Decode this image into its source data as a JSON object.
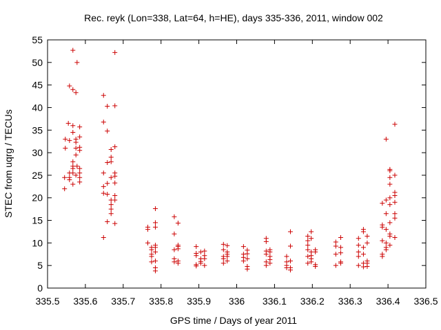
{
  "chart_data": {
    "type": "scatter",
    "title": "Rec. reyk (Lon=338, Lat=64, h=HE), days 335-336, 2011, window 002",
    "xlabel": "GPS time / Days of year 2011",
    "ylabel": "STEC from uqrg / TECUs",
    "xlim": [
      335.5,
      336.5
    ],
    "ylim": [
      0,
      55
    ],
    "xticks": [
      335.5,
      335.6,
      335.7,
      335.8,
      335.9,
      336.0,
      336.1,
      336.2,
      336.3,
      336.4,
      336.5
    ],
    "xtick_labels": [
      "335.5",
      "335.6",
      "335.7",
      "335.8",
      "335.9",
      "336",
      "336.1",
      "336.2",
      "336.3",
      "336.4",
      "336.5"
    ],
    "yticks": [
      0,
      5,
      10,
      15,
      20,
      25,
      30,
      35,
      40,
      45,
      50,
      55
    ],
    "ytick_labels": [
      "0",
      "5",
      "10",
      "15",
      "20",
      "25",
      "30",
      "35",
      "40",
      "45",
      "50",
      "55"
    ],
    "grid": false,
    "marker": "+",
    "color": "#cc0000",
    "points": [
      [
        335.545,
        24.5
      ],
      [
        335.545,
        22.0
      ],
      [
        335.547,
        31.0
      ],
      [
        335.547,
        33.0
      ],
      [
        335.555,
        36.5
      ],
      [
        335.558,
        44.8
      ],
      [
        335.558,
        32.7
      ],
      [
        335.558,
        24.5
      ],
      [
        335.558,
        24.0
      ],
      [
        335.558,
        25.5
      ],
      [
        335.567,
        52.7
      ],
      [
        335.567,
        44.0
      ],
      [
        335.567,
        36.0
      ],
      [
        335.567,
        34.5
      ],
      [
        335.567,
        28.0
      ],
      [
        335.567,
        27.0
      ],
      [
        335.567,
        25.5
      ],
      [
        335.567,
        23.0
      ],
      [
        335.567,
        26.5
      ],
      [
        335.575,
        43.3
      ],
      [
        335.575,
        32.3
      ],
      [
        335.575,
        33.0
      ],
      [
        335.575,
        31.0
      ],
      [
        335.575,
        29.5
      ],
      [
        335.575,
        25.0
      ],
      [
        335.578,
        50.0
      ],
      [
        335.578,
        27.0
      ],
      [
        335.585,
        35.7
      ],
      [
        335.585,
        31.2
      ],
      [
        335.585,
        30.5
      ],
      [
        335.585,
        33.5
      ],
      [
        335.585,
        26.5
      ],
      [
        335.585,
        24.5
      ],
      [
        335.585,
        23.5
      ],
      [
        335.585,
        25.5
      ],
      [
        335.648,
        42.7
      ],
      [
        335.648,
        36.8
      ],
      [
        335.648,
        25.5
      ],
      [
        335.648,
        22.5
      ],
      [
        335.648,
        21.0
      ],
      [
        335.648,
        11.2
      ],
      [
        335.658,
        40.3
      ],
      [
        335.658,
        34.8
      ],
      [
        335.658,
        27.8
      ],
      [
        335.658,
        23.2
      ],
      [
        335.658,
        20.8
      ],
      [
        335.658,
        14.7
      ],
      [
        335.668,
        30.7
      ],
      [
        335.668,
        29.0
      ],
      [
        335.668,
        28.0
      ],
      [
        335.668,
        24.5
      ],
      [
        335.668,
        19.5
      ],
      [
        335.668,
        18.5
      ],
      [
        335.668,
        17.5
      ],
      [
        335.668,
        16.5
      ],
      [
        335.678,
        52.2
      ],
      [
        335.678,
        40.4
      ],
      [
        335.678,
        31.3
      ],
      [
        335.678,
        25.5
      ],
      [
        335.678,
        24.8
      ],
      [
        335.678,
        23.3
      ],
      [
        335.678,
        20.5
      ],
      [
        335.678,
        19.5
      ],
      [
        335.678,
        14.3
      ],
      [
        335.765,
        13.5
      ],
      [
        335.765,
        13.0
      ],
      [
        335.765,
        10.0
      ],
      [
        335.775,
        9.0
      ],
      [
        335.775,
        8.5
      ],
      [
        335.775,
        7.5
      ],
      [
        335.775,
        7.0
      ],
      [
        335.775,
        5.8
      ],
      [
        335.785,
        17.6
      ],
      [
        335.785,
        14.5
      ],
      [
        335.785,
        13.5
      ],
      [
        335.785,
        9.5
      ],
      [
        335.785,
        9.0
      ],
      [
        335.785,
        8.0
      ],
      [
        335.785,
        6.0
      ],
      [
        335.785,
        4.5
      ],
      [
        335.785,
        3.8
      ],
      [
        335.835,
        15.8
      ],
      [
        335.835,
        12.0
      ],
      [
        335.835,
        8.5
      ],
      [
        335.835,
        6.5
      ],
      [
        335.835,
        5.8
      ],
      [
        335.845,
        14.4
      ],
      [
        335.845,
        9.5
      ],
      [
        335.845,
        9.2
      ],
      [
        335.845,
        8.7
      ],
      [
        335.845,
        6.0
      ],
      [
        335.845,
        5.5
      ],
      [
        335.893,
        9.2
      ],
      [
        335.893,
        7.7
      ],
      [
        335.893,
        7.2
      ],
      [
        335.893,
        5.2
      ],
      [
        335.893,
        4.9
      ],
      [
        335.905,
        8.0
      ],
      [
        335.905,
        6.5
      ],
      [
        335.905,
        5.9
      ],
      [
        335.905,
        5.5
      ],
      [
        335.915,
        8.2
      ],
      [
        335.915,
        7.2
      ],
      [
        335.915,
        6.5
      ],
      [
        335.915,
        5.0
      ],
      [
        335.965,
        9.7
      ],
      [
        335.965,
        8.5
      ],
      [
        335.965,
        7.0
      ],
      [
        335.965,
        6.5
      ],
      [
        335.965,
        5.5
      ],
      [
        335.975,
        9.4
      ],
      [
        335.975,
        8.0
      ],
      [
        335.975,
        7.5
      ],
      [
        335.975,
        7.0
      ],
      [
        335.975,
        6.0
      ],
      [
        336.018,
        9.2
      ],
      [
        336.018,
        7.5
      ],
      [
        336.018,
        6.8
      ],
      [
        336.018,
        6.0
      ],
      [
        336.028,
        8.4
      ],
      [
        336.028,
        7.6
      ],
      [
        336.028,
        6.5
      ],
      [
        336.028,
        4.8
      ],
      [
        336.028,
        4.2
      ],
      [
        336.078,
        11.0
      ],
      [
        336.078,
        10.3
      ],
      [
        336.078,
        8.2
      ],
      [
        336.078,
        7.5
      ],
      [
        336.078,
        5.8
      ],
      [
        336.078,
        5.0
      ],
      [
        336.088,
        8.5
      ],
      [
        336.088,
        8.0
      ],
      [
        336.088,
        7.0
      ],
      [
        336.088,
        6.3
      ],
      [
        336.088,
        5.5
      ],
      [
        336.132,
        7.0
      ],
      [
        336.132,
        5.8
      ],
      [
        336.132,
        5.0
      ],
      [
        336.132,
        4.5
      ],
      [
        336.142,
        12.5
      ],
      [
        336.142,
        9.3
      ],
      [
        336.142,
        6.0
      ],
      [
        336.142,
        4.5
      ],
      [
        336.142,
        4.0
      ],
      [
        336.188,
        11.5
      ],
      [
        336.188,
        10.5
      ],
      [
        336.188,
        9.5
      ],
      [
        336.188,
        8.5
      ],
      [
        336.188,
        7.0
      ],
      [
        336.188,
        5.5
      ],
      [
        336.197,
        12.5
      ],
      [
        336.197,
        11.0
      ],
      [
        336.197,
        8.0
      ],
      [
        336.197,
        7.2
      ],
      [
        336.197,
        6.5
      ],
      [
        336.197,
        5.8
      ],
      [
        336.208,
        8.5
      ],
      [
        336.208,
        8.0
      ],
      [
        336.208,
        5.2
      ],
      [
        336.208,
        4.8
      ],
      [
        336.262,
        10.2
      ],
      [
        336.262,
        9.3
      ],
      [
        336.262,
        7.5
      ],
      [
        336.262,
        5.0
      ],
      [
        336.275,
        11.2
      ],
      [
        336.275,
        9.0
      ],
      [
        336.275,
        7.8
      ],
      [
        336.275,
        5.8
      ],
      [
        336.275,
        5.5
      ],
      [
        336.322,
        11.0
      ],
      [
        336.322,
        9.5
      ],
      [
        336.322,
        8.0
      ],
      [
        336.322,
        7.0
      ],
      [
        336.322,
        5.0
      ],
      [
        336.335,
        13.0
      ],
      [
        336.335,
        12.5
      ],
      [
        336.335,
        9.0
      ],
      [
        336.335,
        7.5
      ],
      [
        336.335,
        5.5
      ],
      [
        336.335,
        4.7
      ],
      [
        336.345,
        11.5
      ],
      [
        336.345,
        10.0
      ],
      [
        336.345,
        6.0
      ],
      [
        336.345,
        5.5
      ],
      [
        336.345,
        4.8
      ],
      [
        336.385,
        18.8
      ],
      [
        336.385,
        14.0
      ],
      [
        336.385,
        13.5
      ],
      [
        336.385,
        10.5
      ],
      [
        336.385,
        7.5
      ],
      [
        336.385,
        7.0
      ],
      [
        336.395,
        33.0
      ],
      [
        336.395,
        19.5
      ],
      [
        336.395,
        16.5
      ],
      [
        336.395,
        13.0
      ],
      [
        336.395,
        10.0
      ],
      [
        336.395,
        9.0
      ],
      [
        336.395,
        8.5
      ],
      [
        336.405,
        26.3
      ],
      [
        336.405,
        26.0
      ],
      [
        336.405,
        24.5
      ],
      [
        336.405,
        23.0
      ],
      [
        336.405,
        20.0
      ],
      [
        336.405,
        18.5
      ],
      [
        336.405,
        14.5
      ],
      [
        336.405,
        12.0
      ],
      [
        336.405,
        11.5
      ],
      [
        336.405,
        9.5
      ],
      [
        336.418,
        36.3
      ],
      [
        336.418,
        25.0
      ],
      [
        336.418,
        21.2
      ],
      [
        336.418,
        20.5
      ],
      [
        336.418,
        19.0
      ],
      [
        336.418,
        16.5
      ],
      [
        336.418,
        15.5
      ],
      [
        336.418,
        11.2
      ]
    ]
  }
}
